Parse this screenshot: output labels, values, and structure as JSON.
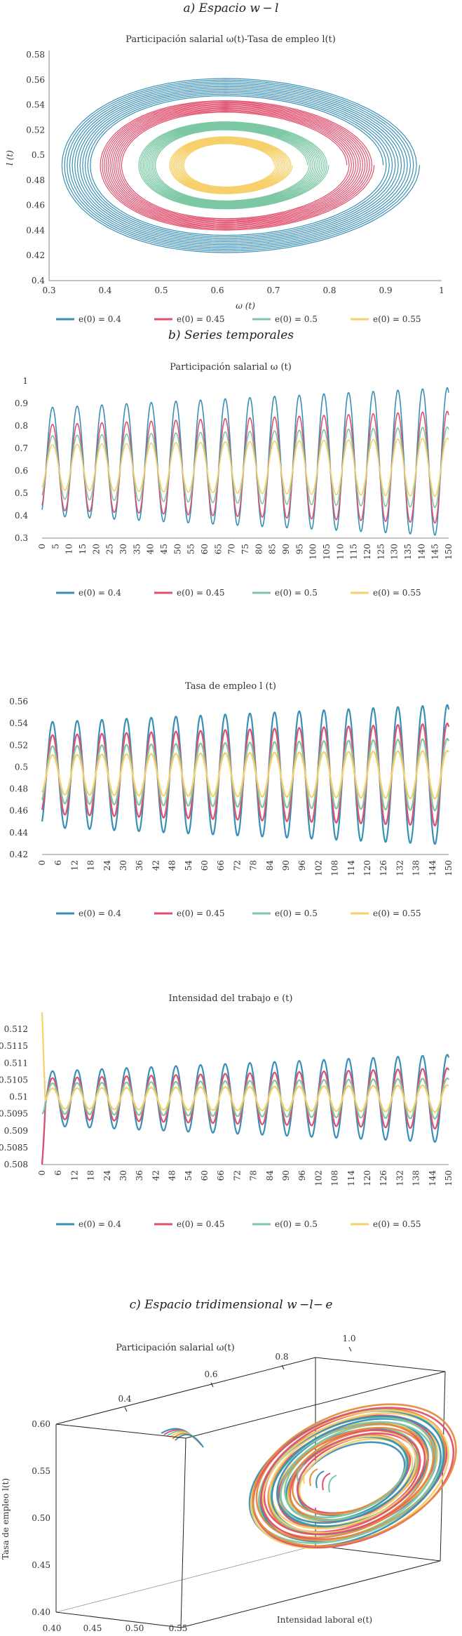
{
  "sections": {
    "a": "a) Espacio w − l",
    "b": "b) Series temporales",
    "c": "c) Espacio tridimensional w −l− e"
  },
  "colors": {
    "s1": "#3a8fb7",
    "s2": "#e0506e",
    "s3": "#7cc8a4",
    "s4": "#f6d06a"
  },
  "chart_data": [
    {
      "id": "phase",
      "type": "line",
      "title": "Participación salarial  ω(t)-Tasa de empleo  l(t)",
      "xlabel": "ω (t)",
      "ylabel": "l (t)",
      "xlim": [
        0.3,
        1
      ],
      "ylim": [
        0.4,
        0.58
      ],
      "xticks": [
        "0.3",
        "0.4",
        "0.5",
        "0.6",
        "0.7",
        "0.8",
        "0.9",
        "1"
      ],
      "yticks": [
        "0.4",
        "0.42",
        "0.44",
        "0.46",
        "0.48",
        "0.5",
        "0.52",
        "0.54",
        "0.56",
        "0.58"
      ],
      "legend": [
        "e(0) = 0.4",
        "e(0) = 0.45",
        "e(0) = 0.5",
        "e(0) = 0.55"
      ],
      "series": [
        {
          "name": "e(0) = 0.4",
          "center": [
            0.615,
            0.492
          ],
          "rx": [
            0.26,
            0.32
          ],
          "ry": [
            0.055,
            0.07
          ]
        },
        {
          "name": "e(0) = 0.45",
          "center": [
            0.615,
            0.492
          ],
          "rx": [
            0.2,
            0.245
          ],
          "ry": [
            0.042,
            0.052
          ]
        },
        {
          "name": "e(0) = 0.5",
          "center": [
            0.615,
            0.492
          ],
          "rx": [
            0.135,
            0.17
          ],
          "ry": [
            0.028,
            0.035
          ]
        },
        {
          "name": "e(0) = 0.55",
          "center": [
            0.615,
            0.492
          ],
          "rx": [
            0.08,
            0.11
          ],
          "ry": [
            0.017,
            0.023
          ]
        }
      ]
    },
    {
      "id": "wage",
      "type": "line",
      "title": "Participación salarial  ω (t)",
      "xlim": [
        0,
        150
      ],
      "ylim": [
        0.3,
        1
      ],
      "xticks": [
        "0",
        "5",
        "10",
        "15",
        "20",
        "25",
        "30",
        "35",
        "40",
        "45",
        "50",
        "55",
        "60",
        "65",
        "70",
        "75",
        "80",
        "85",
        "90",
        "95",
        "100",
        "105",
        "110",
        "115",
        "120",
        "125",
        "130",
        "135",
        "140",
        "145",
        "150"
      ],
      "yticks": [
        "0.3",
        "0.4",
        "0.5",
        "0.6",
        "0.7",
        "0.8",
        "0.9",
        "1"
      ],
      "legend": [
        "e(0) = 0.4",
        "e(0) = 0.45",
        "e(0) = 0.5",
        "e(0) = 0.55"
      ],
      "period": 9.1,
      "series": [
        {
          "name": "e(0) = 0.4",
          "mid": 0.64,
          "amp": [
            0.24,
            0.33
          ]
        },
        {
          "name": "e(0) = 0.45",
          "mid": 0.615,
          "amp": [
            0.19,
            0.25
          ]
        },
        {
          "name": "e(0) = 0.5",
          "mid": 0.615,
          "amp": [
            0.14,
            0.18
          ]
        },
        {
          "name": "e(0) = 0.55",
          "mid": 0.615,
          "amp": [
            0.1,
            0.13
          ]
        }
      ]
    },
    {
      "id": "employment",
      "type": "line",
      "title": "Tasa de empleo  l (t)",
      "xlim": [
        0,
        150
      ],
      "ylim": [
        0.42,
        0.56
      ],
      "xticks": [
        "0",
        "6",
        "12",
        "18",
        "24",
        "30",
        "36",
        "42",
        "48",
        "54",
        "60",
        "66",
        "72",
        "78",
        "84",
        "90",
        "96",
        "102",
        "108",
        "114",
        "120",
        "126",
        "132",
        "138",
        "144",
        "150"
      ],
      "yticks": [
        "0.42",
        "0.44",
        "0.46",
        "0.48",
        "0.5",
        "0.52",
        "0.54",
        "0.56"
      ],
      "legend": [
        "e(0) = 0.4",
        "e(0) = 0.45",
        "e(0) = 0.5",
        "e(0) = 0.55"
      ],
      "period": 9.1,
      "series": [
        {
          "name": "e(0) = 0.4",
          "mid": 0.493,
          "amp": [
            0.048,
            0.064
          ]
        },
        {
          "name": "e(0) = 0.45",
          "mid": 0.493,
          "amp": [
            0.036,
            0.047
          ]
        },
        {
          "name": "e(0) = 0.5",
          "mid": 0.493,
          "amp": [
            0.026,
            0.033
          ]
        },
        {
          "name": "e(0) = 0.55",
          "mid": 0.493,
          "amp": [
            0.018,
            0.022
          ]
        }
      ]
    },
    {
      "id": "intensity",
      "type": "line",
      "title": "Intensidad del trabajo  e (t)",
      "xlim": [
        0,
        150
      ],
      "ylim": [
        0.508,
        0.5125
      ],
      "xticks": [
        "0",
        "6",
        "12",
        "18",
        "24",
        "30",
        "36",
        "42",
        "48",
        "54",
        "60",
        "66",
        "72",
        "78",
        "84",
        "90",
        "96",
        "102",
        "108",
        "114",
        "120",
        "126",
        "132",
        "138",
        "144",
        "150"
      ],
      "yticks": [
        "0.508",
        "0.5085",
        "0.509",
        "0.5095",
        "0.51",
        "0.5105",
        "0.511",
        "0.5115",
        "0.512"
      ],
      "legend": [
        "e(0) = 0.4",
        "e(0) = 0.45",
        "e(0) = 0.5",
        "e(0) = 0.55"
      ],
      "period": 9.1,
      "series": [
        {
          "name": "e(0) = 0.4",
          "mid": 0.50995,
          "amp": [
            0.0008,
            0.0013
          ],
          "start": 0.508
        },
        {
          "name": "e(0) = 0.45",
          "mid": 0.50995,
          "amp": [
            0.0006,
            0.0009
          ],
          "start": 0.508
        },
        {
          "name": "e(0) = 0.5",
          "mid": 0.50995,
          "amp": [
            0.00045,
            0.0006
          ],
          "start": 0.5095
        },
        {
          "name": "e(0) = 0.55",
          "mid": 0.50995,
          "amp": [
            0.0003,
            0.0004
          ],
          "start": 0.5125
        }
      ]
    },
    {
      "id": "space3d",
      "type": "scatter",
      "title": "Participación salarial  ω(t)",
      "ylabel": "Tasa de empleo l(t)",
      "xlabel": "Intensidad laboral e(t)",
      "wticks": [
        "0.4",
        "0.6",
        "0.8",
        "1.0"
      ],
      "lticks": [
        "0.40",
        "0.45",
        "0.50",
        "0.55",
        "0.60"
      ],
      "eticks": [
        "0.40",
        "0.45",
        "0.50",
        "0.55"
      ]
    }
  ]
}
